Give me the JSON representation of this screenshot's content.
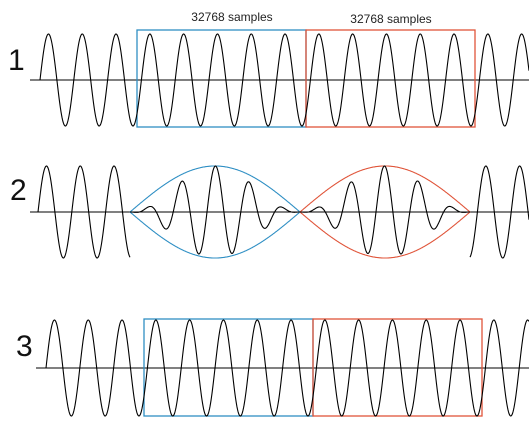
{
  "row_labels": [
    "1",
    "2",
    "3"
  ],
  "window_labels": [
    "32768 samples",
    "32768 samples"
  ]
}
